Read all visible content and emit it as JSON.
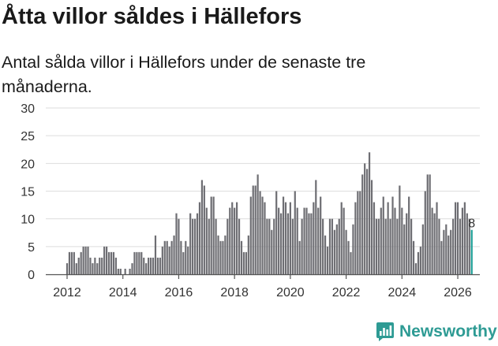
{
  "title": "Åtta villor såldes i Hällefors",
  "subtitle": "Antal sålda villor i Hällefors under de senaste tre månaderna.",
  "brand": "Newsworthy",
  "colors": {
    "bar": "#6e6e73",
    "highlight": "#1c9e96",
    "grid": "#dddddd",
    "brand": "#2e9b94"
  },
  "chart_data": {
    "type": "bar",
    "title": "Åtta villor såldes i Hällefors",
    "xlabel": "",
    "ylabel": "",
    "ylim": [
      0,
      30
    ],
    "yticks": [
      "0",
      "5",
      "10",
      "15",
      "20",
      "25",
      "30"
    ],
    "xticks": [
      "2012",
      "2014",
      "2016",
      "2018",
      "2020",
      "2022",
      "2024",
      "2026"
    ],
    "start": "2012-01",
    "end": "2026-03",
    "highlight_label": "8",
    "values": [
      2,
      4,
      4,
      4,
      2,
      3,
      4,
      5,
      5,
      5,
      3,
      2,
      3,
      2,
      3,
      3,
      5,
      5,
      4,
      4,
      4,
      3,
      1,
      1,
      0,
      1,
      0,
      1,
      2,
      4,
      4,
      4,
      4,
      3,
      2,
      3,
      3,
      3,
      7,
      3,
      3,
      5,
      6,
      6,
      5,
      6,
      7,
      11,
      10,
      6,
      4,
      6,
      5,
      11,
      10,
      10,
      11,
      13,
      17,
      16,
      12,
      10,
      14,
      14,
      10,
      7,
      6,
      6,
      7,
      10,
      12,
      13,
      12,
      13,
      10,
      6,
      4,
      4,
      7,
      14,
      16,
      16,
      18,
      15,
      14,
      13,
      10,
      10,
      8,
      10,
      15,
      12,
      11,
      14,
      13,
      11,
      13,
      10,
      15,
      12,
      6,
      10,
      12,
      12,
      11,
      11,
      13,
      17,
      12,
      14,
      10,
      7,
      5,
      10,
      10,
      8,
      9,
      10,
      13,
      12,
      8,
      6,
      4,
      9,
      13,
      15,
      15,
      18,
      20,
      19,
      22,
      17,
      13,
      10,
      10,
      12,
      14,
      10,
      13,
      10,
      14,
      12,
      10,
      16,
      12,
      9,
      11,
      14,
      10,
      6,
      2,
      4,
      5,
      9,
      15,
      18,
      18,
      12,
      11,
      13,
      10,
      6,
      8,
      9,
      7,
      8,
      10,
      13,
      13,
      10,
      12,
      13,
      11,
      10,
      8
    ]
  }
}
